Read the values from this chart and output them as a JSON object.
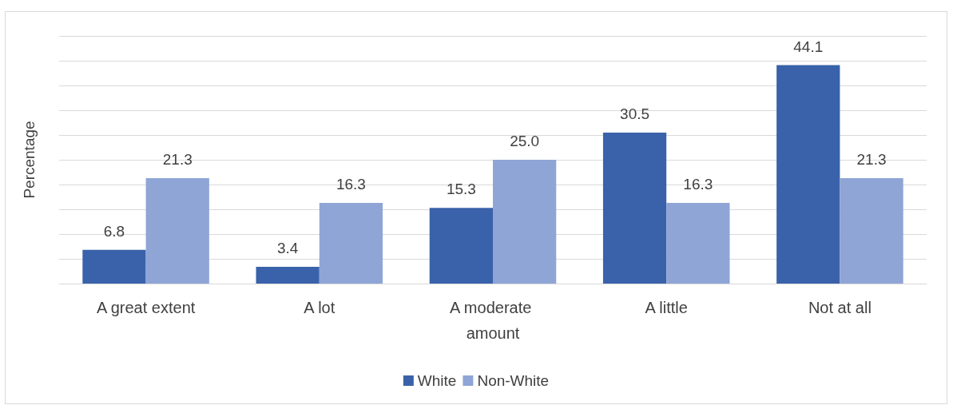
{
  "chart_data": {
    "type": "bar",
    "ylabel": "Percentage",
    "categories": [
      "A great extent",
      "A lot",
      "A moderate amount",
      "A little",
      "Not at all"
    ],
    "series": [
      {
        "name": "White",
        "color": "#3a62aa",
        "values": [
          6.8,
          3.4,
          15.3,
          30.5,
          44.1
        ],
        "value_labels": [
          "6.8",
          "3.4",
          "15.3",
          "30.5",
          "44.1"
        ]
      },
      {
        "name": "Non-White",
        "color": "#8fa5d6",
        "values": [
          21.3,
          16.3,
          25.0,
          16.3,
          21.3
        ],
        "value_labels": [
          "21.3",
          "16.3",
          "25.0",
          "16.3",
          "21.3"
        ]
      }
    ],
    "ylim": [
      0,
      50
    ],
    "yticks": [
      {
        "value": 0,
        "label": null
      },
      {
        "value": 5,
        "label": null
      },
      {
        "value": 10,
        "label": null
      },
      {
        "value": 15,
        "label": null
      },
      {
        "value": 20,
        "label": null
      },
      {
        "value": 25,
        "label": null
      },
      {
        "value": 30,
        "label": null
      },
      {
        "value": 35,
        "label": null
      },
      {
        "value": 40,
        "label": null
      },
      {
        "value": 45,
        "label": null
      },
      {
        "value": 50,
        "label": null
      }
    ],
    "tick_labels": "x",
    "grid": "y",
    "legend": "bottom"
  }
}
